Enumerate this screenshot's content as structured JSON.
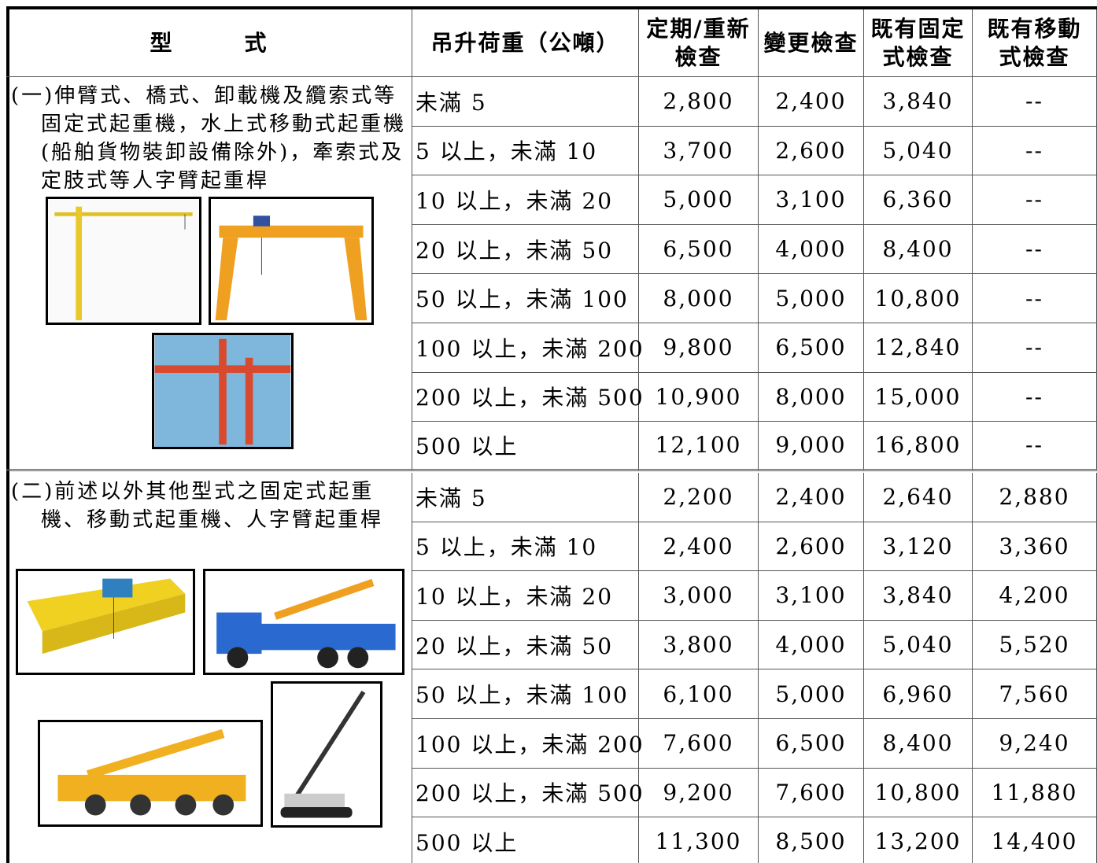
{
  "header": {
    "type": "型　　　式",
    "load": "吊升荷重（公噸）",
    "periodic": [
      "定期/重新",
      "檢查"
    ],
    "change": "變更檢查",
    "fixed": [
      "既有固定",
      "式檢查"
    ],
    "mobile": [
      "既有移動",
      "式檢查"
    ]
  },
  "sections": [
    {
      "label": "(一)伸臂式、橋式、卸載機及纜索式等固定式起重機，水上式移動式起重機(船舶貨物裝卸設備除外)，牽索式及定肢式等人字臂起重桿",
      "rows": [
        [
          "未滿 5",
          "2,800",
          "2,400",
          "3,840",
          "--"
        ],
        [
          "5 以上，未滿 10",
          "3,700",
          "2,600",
          "5,040",
          "--"
        ],
        [
          "10 以上，未滿 20",
          "5,000",
          "3,100",
          "6,360",
          "--"
        ],
        [
          "20 以上，未滿 50",
          "6,500",
          "4,000",
          "8,400",
          "--"
        ],
        [
          "50 以上，未滿 100",
          "8,000",
          "5,000",
          "10,800",
          "--"
        ],
        [
          "100 以上，未滿 200",
          "9,800",
          "6,500",
          "12,840",
          "--"
        ],
        [
          "200 以上，未滿 500",
          "10,900",
          "8,000",
          "15,000",
          "--"
        ],
        [
          "500 以上",
          "12,100",
          "9,000",
          "16,800",
          "--"
        ]
      ]
    },
    {
      "label": "(二)前述以外其他型式之固定式起重機、移動式起重機、人字臂起重桿",
      "rows": [
        [
          "未滿 5",
          "2,200",
          "2,400",
          "2,640",
          "2,880"
        ],
        [
          "5 以上，未滿 10",
          "2,400",
          "2,600",
          "3,120",
          "3,360"
        ],
        [
          "10 以上，未滿 20",
          "3,000",
          "3,100",
          "3,840",
          "4,200"
        ],
        [
          "20 以上，未滿 50",
          "3,800",
          "4,000",
          "5,040",
          "5,520"
        ],
        [
          "50 以上，未滿 100",
          "6,100",
          "5,000",
          "6,960",
          "7,560"
        ],
        [
          "100 以上，未滿 200",
          "7,600",
          "6,500",
          "8,400",
          "9,240"
        ],
        [
          "200 以上，未滿 500",
          "9,200",
          "7,600",
          "10,800",
          "11,880"
        ],
        [
          "500 以上",
          "11,300",
          "8,500",
          "13,200",
          "14,400"
        ]
      ]
    }
  ]
}
